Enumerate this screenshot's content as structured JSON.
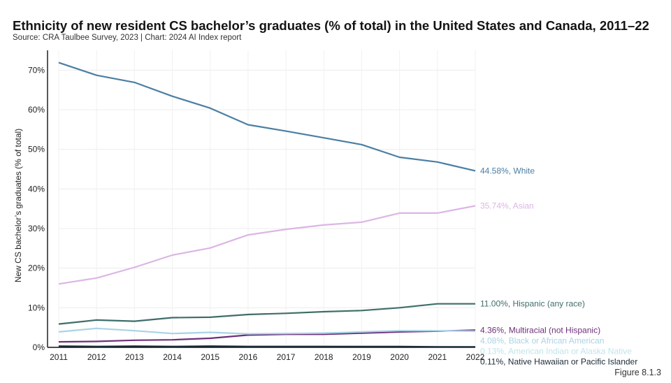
{
  "header": {
    "title": "Ethnicity of new resident CS bachelor’s graduates (% of total) in the United States and Canada, 2011–22",
    "subtitle": "Source: CRA Taulbee Survey, 2023 | Chart: 2024 AI Index report"
  },
  "footer": {
    "figure": "Figure 8.1.3"
  },
  "chart_data": {
    "type": "line",
    "title": "Ethnicity of new resident CS bachelor’s graduates (% of total) in the United States and Canada, 2011–22",
    "ylabel": "New CS bachelor’s graduates (% of total)",
    "xlabel": "",
    "x": [
      2011,
      2012,
      2013,
      2014,
      2015,
      2016,
      2017,
      2018,
      2019,
      2020,
      2021,
      2022
    ],
    "ylim": [
      0,
      75
    ],
    "yticks": [
      0,
      10,
      20,
      30,
      40,
      50,
      60,
      70
    ],
    "ytick_labels": [
      "0%",
      "10%",
      "20%",
      "30%",
      "40%",
      "50%",
      "60%",
      "70%"
    ],
    "grid": true,
    "series": [
      {
        "name": "White",
        "label": "44.58%, White",
        "color": "#4b7fa3",
        "values": [
          71.9,
          68.7,
          66.9,
          63.4,
          60.4,
          56.2,
          54.6,
          52.9,
          51.2,
          48.0,
          46.8,
          44.58
        ]
      },
      {
        "name": "Asian",
        "label": "35.74%, Asian",
        "color": "#dcb6e4",
        "values": [
          16.0,
          17.5,
          20.2,
          23.3,
          25.1,
          28.4,
          29.8,
          30.9,
          31.6,
          33.9,
          33.9,
          35.74
        ]
      },
      {
        "name": "Hispanic (any race)",
        "label": "11.00%, Hispanic (any race)",
        "color": "#3f6e6a",
        "values": [
          5.9,
          6.9,
          6.6,
          7.5,
          7.6,
          8.3,
          8.6,
          9.0,
          9.3,
          10.0,
          11.0,
          11.0
        ]
      },
      {
        "name": "Multiracial (not Hispanic)",
        "label": "4.36%, Multiracial (not Hispanic)",
        "color": "#6e2f7a",
        "values": [
          1.4,
          1.5,
          1.8,
          1.9,
          2.3,
          3.1,
          3.3,
          3.3,
          3.6,
          3.9,
          4.1,
          4.36
        ]
      },
      {
        "name": "Black or African American",
        "label": "4.08%, Black or African American",
        "color": "#a9d3e6",
        "values": [
          3.9,
          4.8,
          4.2,
          3.5,
          3.8,
          3.4,
          3.5,
          3.6,
          3.9,
          4.2,
          4.2,
          4.08
        ]
      },
      {
        "name": "American Indian or Alaska Native",
        "label": "0.13%, American Indian or Alaska Native",
        "color": "#bfe4ea",
        "values": [
          0.4,
          0.3,
          0.3,
          0.3,
          0.4,
          0.3,
          0.3,
          0.3,
          0.2,
          0.2,
          0.2,
          0.13
        ]
      },
      {
        "name": "Native Hawaiian or Pacific Islander",
        "label": "0.11%, Native Hawaiian or Pacific Islander",
        "color": "#1b2a35",
        "values": [
          0.3,
          0.2,
          0.3,
          0.2,
          0.3,
          0.2,
          0.2,
          0.2,
          0.2,
          0.2,
          0.1,
          0.11
        ]
      }
    ]
  }
}
